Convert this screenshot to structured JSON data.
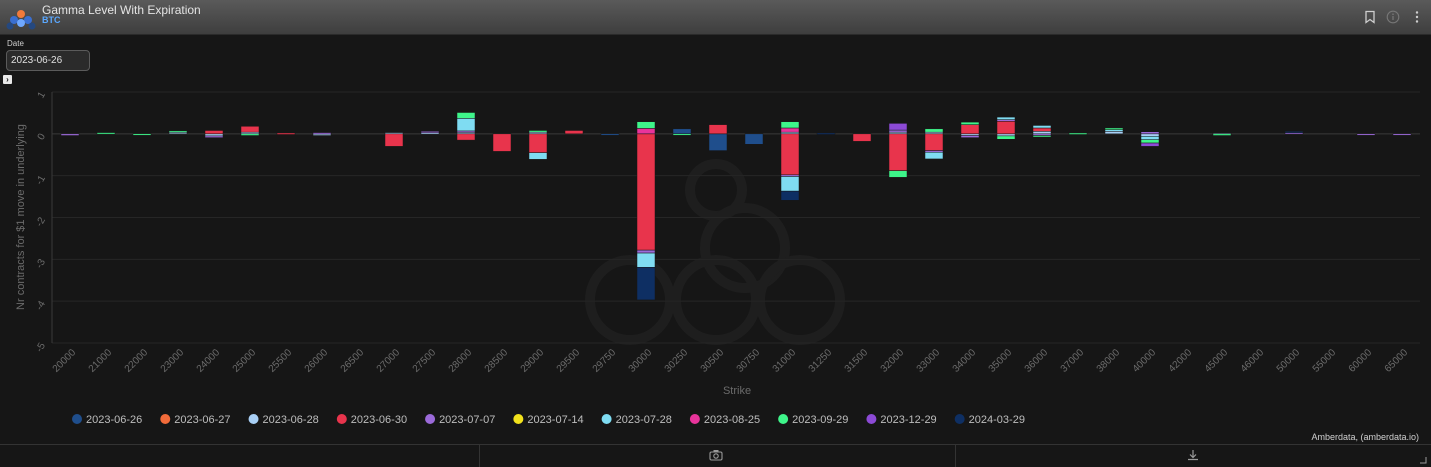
{
  "header": {
    "title": "Gamma Level With Expiration",
    "subtitle": "BTC",
    "icons": [
      "bookmark-icon",
      "info-icon",
      "more-icon"
    ]
  },
  "controls": {
    "date_label": "Date",
    "date_value": "2023-06-26"
  },
  "credit": "Amberdata, (amberdata.io)",
  "footer_icons": [
    "camera-icon",
    "download-icon"
  ],
  "colors": {
    "background": "#161616",
    "grid": "#2c2c2c",
    "text": "#bdbdbd"
  },
  "chart_data": {
    "type": "bar",
    "stacked": true,
    "xlabel": "Strike",
    "ylabel": "Nr contracts for $1 move in underlying",
    "ylim": [
      -5,
      1
    ],
    "yticks": [
      1,
      0,
      -1,
      -2,
      -3,
      -4,
      -5
    ],
    "ytick_labels": [
      "1",
      "0",
      "-1",
      "-2",
      "-3",
      "-4",
      "-5"
    ],
    "categories": [
      "20000",
      "21000",
      "22000",
      "23000",
      "24000",
      "25000",
      "25500",
      "26000",
      "26500",
      "27000",
      "27500",
      "28000",
      "28500",
      "29000",
      "29500",
      "29750",
      "30000",
      "30250",
      "30500",
      "30750",
      "31000",
      "31250",
      "31500",
      "32000",
      "33000",
      "34000",
      "35000",
      "36000",
      "37000",
      "38000",
      "40000",
      "42000",
      "45000",
      "46000",
      "50000",
      "55000",
      "60000",
      "65000"
    ],
    "series": [
      {
        "name": "2023-06-26",
        "color": "#1f4e8c",
        "values": [
          0,
          0,
          0,
          0,
          0,
          0,
          0,
          0,
          0,
          0,
          0,
          0,
          0,
          0,
          0,
          -0.02,
          0,
          0.12,
          -0.4,
          -0.25,
          0,
          0,
          0,
          0,
          0,
          0,
          0,
          0,
          0,
          0,
          0,
          0,
          0,
          0,
          0,
          0,
          0,
          0
        ]
      },
      {
        "name": "2023-06-27",
        "color": "#f26b3a",
        "values": [
          0,
          0,
          0,
          0,
          0,
          0,
          0,
          0,
          0,
          0,
          0,
          0,
          0,
          0,
          0,
          0,
          0,
          0,
          0,
          0,
          0,
          0,
          0,
          0,
          0,
          0,
          0,
          0,
          0,
          0,
          0,
          0,
          0,
          0,
          0,
          0,
          0,
          0
        ]
      },
      {
        "name": "2023-06-28",
        "color": "#a8cff5",
        "values": [
          0,
          0,
          0,
          0.04,
          -0.05,
          0.04,
          0,
          -0.04,
          0,
          0.03,
          0.03,
          0.04,
          0,
          0.04,
          0,
          0,
          0,
          0,
          0,
          0,
          0.04,
          0,
          0,
          0.04,
          0.04,
          -0.04,
          -0.05,
          0.06,
          0,
          0.06,
          -0.06,
          0,
          0.02,
          0,
          0,
          0,
          0,
          0
        ]
      },
      {
        "name": "2023-06-30",
        "color": "#e8344c",
        "values": [
          0,
          0,
          0,
          0,
          0.08,
          0.14,
          0.02,
          0,
          0,
          -0.3,
          0,
          -0.15,
          -0.42,
          -0.45,
          0.08,
          0,
          -2.78,
          0,
          0.22,
          0,
          -0.98,
          0,
          -0.18,
          -0.88,
          -0.4,
          0.22,
          0.3,
          0.08,
          0,
          0,
          0,
          0,
          0,
          0,
          0,
          0,
          0,
          0
        ]
      },
      {
        "name": "2023-07-07",
        "color": "#9b6ad9",
        "values": [
          -0.04,
          0,
          0,
          0,
          -0.04,
          0,
          0,
          0.03,
          0,
          0,
          0.03,
          0.03,
          0,
          0,
          0,
          0,
          -0.07,
          0,
          0,
          0,
          -0.04,
          0,
          0,
          0.05,
          -0.04,
          -0.05,
          0.04,
          -0.04,
          0,
          0,
          0.05,
          0,
          0,
          0,
          0.03,
          0,
          -0.03,
          -0.02
        ]
      },
      {
        "name": "2023-07-14",
        "color": "#f2e21c",
        "values": [
          0,
          0,
          0,
          0,
          0,
          0,
          0,
          0,
          0,
          0,
          0,
          0,
          0,
          0,
          0,
          0,
          0,
          0,
          0,
          0,
          0,
          0,
          0,
          0,
          0,
          0,
          0,
          0,
          0,
          0,
          0,
          0,
          0,
          0,
          0,
          0,
          0,
          0
        ]
      },
      {
        "name": "2023-07-28",
        "color": "#7fdcf2",
        "values": [
          0,
          0,
          0,
          0,
          0,
          0,
          0,
          0,
          0,
          0,
          0,
          0.3,
          0,
          -0.16,
          0,
          0,
          -0.34,
          0,
          0,
          0,
          -0.35,
          0,
          0,
          0,
          -0.16,
          0,
          0.06,
          0.06,
          0,
          0.04,
          -0.08,
          0,
          0,
          0,
          0,
          0,
          0,
          0
        ]
      },
      {
        "name": "2023-08-25",
        "color": "#e8349b",
        "values": [
          0,
          0,
          0,
          0,
          0,
          0,
          0,
          0,
          0,
          0,
          0,
          0,
          0,
          0,
          0,
          0,
          0.13,
          0,
          0,
          0,
          0.1,
          0,
          0,
          0,
          0,
          0,
          0,
          0,
          0,
          0,
          0,
          0,
          0,
          0,
          0,
          0,
          0,
          0
        ]
      },
      {
        "name": "2023-09-29",
        "color": "#3ef58a",
        "values": [
          0,
          0.03,
          -0.03,
          0.03,
          0,
          -0.04,
          0,
          0,
          0,
          0,
          0,
          0.14,
          0,
          0.04,
          0,
          0,
          0.16,
          -0.03,
          0,
          0,
          0.15,
          0,
          0,
          -0.16,
          0.08,
          0.06,
          -0.08,
          -0.03,
          0.02,
          0.04,
          -0.08,
          0,
          -0.04,
          0,
          0,
          0,
          0,
          0
        ]
      },
      {
        "name": "2023-12-29",
        "color": "#8c4ad6",
        "values": [
          0,
          0,
          0,
          0,
          0,
          0,
          0,
          0,
          0,
          0,
          0,
          0,
          0,
          0,
          0,
          0,
          0,
          0,
          0,
          0,
          0,
          0,
          0,
          0.16,
          0,
          0,
          0,
          0,
          0,
          0,
          -0.08,
          0,
          0,
          0,
          0,
          0,
          0,
          0
        ]
      },
      {
        "name": "2024-03-29",
        "color": "#0e2f63",
        "values": [
          0,
          0,
          0,
          0,
          0,
          0,
          0,
          0,
          0,
          0,
          0,
          0,
          0,
          0,
          0,
          0,
          -0.78,
          0,
          0,
          0,
          -0.22,
          0.02,
          0,
          0,
          0,
          0,
          0,
          0,
          0,
          0,
          0,
          0,
          0,
          0,
          0.03,
          0,
          0,
          0
        ]
      }
    ]
  }
}
